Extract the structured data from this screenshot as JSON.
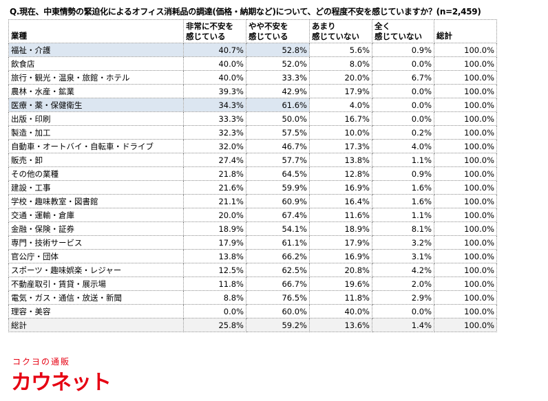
{
  "question": "Q.現在、中東情勢の緊迫化によるオフィス消耗品の調達(価格・納期など)について、どの程度不安を感じていますか？(n=2,459)",
  "brand": {
    "sub": "コクヨの通販",
    "main": "カウネット",
    "color": "#e60012"
  },
  "colors": {
    "highlight": "#dce6f1",
    "total_row": "#f2f2f2",
    "border": "#8a8a8a"
  },
  "chart_data": {
    "type": "table",
    "title": "Q.現在、中東情勢の緊迫化によるオフィス消耗品の調達(価格・納期など)について、どの程度不安を感じていますか？(n=2,459)",
    "columns": [
      "業種",
      "非常に不安を感じている",
      "やや不安を感じている",
      "あまり感じていない",
      "全く感じていない",
      "総計"
    ],
    "header_lines": [
      [
        "業種"
      ],
      [
        "非常に不安を",
        "感じている"
      ],
      [
        "やや不安を",
        "感じている"
      ],
      [
        "あまり",
        "感じていない"
      ],
      [
        "全く",
        "感じていない"
      ],
      [
        "総計"
      ]
    ],
    "rows": [
      {
        "industry": "福祉・介護",
        "values": [
          "40.7%",
          "52.8%",
          "5.6%",
          "0.9%",
          "100.0%"
        ],
        "highlight": true
      },
      {
        "industry": "飲食店",
        "values": [
          "40.0%",
          "52.0%",
          "8.0%",
          "0.0%",
          "100.0%"
        ]
      },
      {
        "industry": "旅行・観光・温泉・旅館・ホテル",
        "values": [
          "40.0%",
          "33.3%",
          "20.0%",
          "6.7%",
          "100.0%"
        ]
      },
      {
        "industry": "農林・水産・鉱業",
        "values": [
          "39.3%",
          "42.9%",
          "17.9%",
          "0.0%",
          "100.0%"
        ]
      },
      {
        "industry": "医療・薬・保健衛生",
        "values": [
          "34.3%",
          "61.6%",
          "4.0%",
          "0.0%",
          "100.0%"
        ],
        "highlight": true
      },
      {
        "industry": "出版・印刷",
        "values": [
          "33.3%",
          "50.0%",
          "16.7%",
          "0.0%",
          "100.0%"
        ]
      },
      {
        "industry": "製造・加工",
        "values": [
          "32.3%",
          "57.5%",
          "10.0%",
          "0.2%",
          "100.0%"
        ]
      },
      {
        "industry": "自動車・オートバイ・自転車・ドライブ",
        "values": [
          "32.0%",
          "46.7%",
          "17.3%",
          "4.0%",
          "100.0%"
        ]
      },
      {
        "industry": "販売・卸",
        "values": [
          "27.4%",
          "57.7%",
          "13.8%",
          "1.1%",
          "100.0%"
        ]
      },
      {
        "industry": "その他の業種",
        "values": [
          "21.8%",
          "64.5%",
          "12.8%",
          "0.9%",
          "100.0%"
        ]
      },
      {
        "industry": "建設・工事",
        "values": [
          "21.6%",
          "59.9%",
          "16.9%",
          "1.6%",
          "100.0%"
        ]
      },
      {
        "industry": "学校・趣味教室・図書館",
        "values": [
          "21.1%",
          "60.9%",
          "16.4%",
          "1.6%",
          "100.0%"
        ]
      },
      {
        "industry": "交通・運輸・倉庫",
        "values": [
          "20.0%",
          "67.4%",
          "11.6%",
          "1.1%",
          "100.0%"
        ]
      },
      {
        "industry": "金融・保険・証券",
        "values": [
          "18.9%",
          "54.1%",
          "18.9%",
          "8.1%",
          "100.0%"
        ]
      },
      {
        "industry": "専門・技術サービス",
        "values": [
          "17.9%",
          "61.1%",
          "17.9%",
          "3.2%",
          "100.0%"
        ]
      },
      {
        "industry": "官公庁・団体",
        "values": [
          "13.8%",
          "66.2%",
          "16.9%",
          "3.1%",
          "100.0%"
        ]
      },
      {
        "industry": "スポーツ・趣味娯楽・レジャー",
        "values": [
          "12.5%",
          "62.5%",
          "20.8%",
          "4.2%",
          "100.0%"
        ]
      },
      {
        "industry": "不動産取引・賃貸・展示場",
        "values": [
          "11.8%",
          "66.7%",
          "19.6%",
          "2.0%",
          "100.0%"
        ]
      },
      {
        "industry": "電気・ガス・通信・放送・新聞",
        "values": [
          "8.8%",
          "76.5%",
          "11.8%",
          "2.9%",
          "100.0%"
        ]
      },
      {
        "industry": "理容・美容",
        "values": [
          "0.0%",
          "60.0%",
          "40.0%",
          "0.0%",
          "100.0%"
        ]
      }
    ],
    "total": {
      "industry": "総計",
      "values": [
        "25.8%",
        "59.2%",
        "13.6%",
        "1.4%",
        "100.0%"
      ]
    }
  }
}
